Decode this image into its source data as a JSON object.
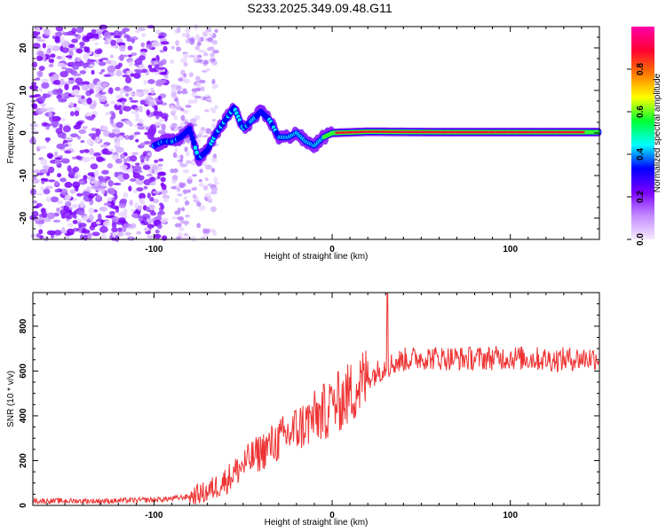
{
  "title": "S233.2025.349.09.48.G11",
  "chart_data": [
    {
      "type": "heatmap",
      "name": "spectrogram",
      "xlabel": "Height of straight line (km)",
      "ylabel": "Frequency (Hz)",
      "xlim": [
        -168,
        150
      ],
      "ylim": [
        -25,
        25
      ],
      "xticks": [
        -100,
        0,
        100
      ],
      "yticks": [
        -20,
        -10,
        0,
        10,
        20
      ],
      "colorbar": {
        "label": "Normalized spectral amplitude",
        "range": [
          0,
          1
        ],
        "ticks": [
          "0.0",
          "0.2",
          "0.4",
          "0.6",
          "0.8"
        ],
        "tick_values": [
          0.0,
          0.2,
          0.4,
          0.6,
          0.8
        ],
        "colors": [
          "#f6eaff",
          "#c38bff",
          "#7a00ff",
          "#0000ff",
          "#00ffff",
          "#00ff33",
          "#ffff00",
          "#ff7a00",
          "#ff0033",
          "#ff00aa"
        ]
      },
      "ridge": [
        {
          "x": -100,
          "f": -3
        },
        {
          "x": -95,
          "f": -2
        },
        {
          "x": -90,
          "f": -2
        },
        {
          "x": -85,
          "f": -1
        },
        {
          "x": -80,
          "f": 1
        },
        {
          "x": -75,
          "f": -6
        },
        {
          "x": -70,
          "f": -4
        },
        {
          "x": -65,
          "f": 0
        },
        {
          "x": -60,
          "f": 3
        },
        {
          "x": -55,
          "f": 6
        },
        {
          "x": -50,
          "f": 1
        },
        {
          "x": -45,
          "f": 3
        },
        {
          "x": -40,
          "f": 5
        },
        {
          "x": -35,
          "f": 3
        },
        {
          "x": -30,
          "f": -1
        },
        {
          "x": -25,
          "f": -1
        },
        {
          "x": -20,
          "f": 0
        },
        {
          "x": -15,
          "f": -2
        },
        {
          "x": -10,
          "f": -3
        },
        {
          "x": -5,
          "f": -1
        },
        {
          "x": 0,
          "f": 0
        },
        {
          "x": 20,
          "f": 0.3
        },
        {
          "x": 60,
          "f": 0.2
        },
        {
          "x": 100,
          "f": 0.2
        },
        {
          "x": 150,
          "f": 0.2
        }
      ]
    },
    {
      "type": "line",
      "name": "snr",
      "xlabel": "Height of straight line (km)",
      "ylabel": "SNR (10 * v/v)",
      "xlim": [
        -168,
        150
      ],
      "ylim": [
        0,
        950
      ],
      "xticks": [
        -100,
        0,
        100
      ],
      "yticks": [
        0,
        200,
        400,
        600,
        800
      ],
      "color": "#ee3333",
      "series": [
        {
          "name": "SNR",
          "x": [
            -168,
            -150,
            -125,
            -100,
            -90,
            -80,
            -70,
            -60,
            -50,
            -40,
            -30,
            -20,
            -10,
            0,
            10,
            20,
            30,
            40,
            50,
            75,
            100,
            125,
            150
          ],
          "values": [
            20,
            20,
            20,
            25,
            30,
            40,
            60,
            110,
            180,
            240,
            290,
            340,
            390,
            440,
            500,
            570,
            620,
            650,
            660,
            655,
            660,
            650,
            660
          ]
        }
      ]
    }
  ]
}
